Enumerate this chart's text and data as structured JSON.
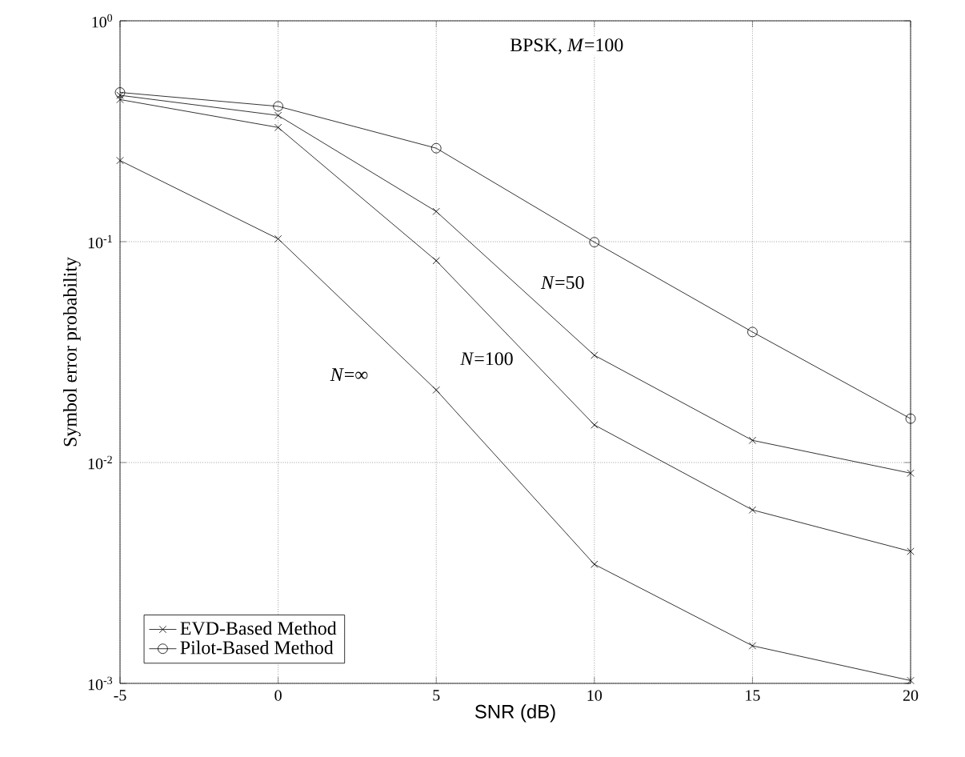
{
  "chart_data": {
    "type": "line",
    "title": "BPSK, *M*=100",
    "xlabel": "SNR (dB)",
    "ylabel": "Symbol error probability",
    "x": [
      -5,
      0,
      5,
      10,
      15,
      20
    ],
    "series": [
      {
        "name": "EVD-Based Method",
        "color": "#000000",
        "marker": "cross",
        "values": [
          0.233,
          0.103,
          0.0213,
          0.00346,
          0.00148,
          0.00103
        ]
      },
      {
        "color": "#000000",
        "marker": "cross",
        "values": [
          0.44,
          0.329,
          0.082,
          0.0148,
          0.0061,
          0.00396
        ]
      },
      {
        "color": "#000000",
        "marker": "cross",
        "values": [
          0.46,
          0.373,
          0.137,
          0.0306,
          0.0126,
          0.00895
        ]
      },
      {
        "name": "Pilot-Based Method",
        "color": "#000000",
        "marker": "circle",
        "values": [
          0.474,
          0.41,
          0.265,
          0.0995,
          0.039,
          0.0158
        ]
      }
    ],
    "annotations": [
      "*N*=∞",
      "*N*=100",
      "*N*=50"
    ],
    "xlim": [
      -5,
      20
    ],
    "xticks": [
      -5,
      0,
      5,
      10,
      15,
      20
    ],
    "ylim": [
      0.001,
      1
    ],
    "yticks": [
      {
        "value": 0.001,
        "label": "10$^{-3}$"
      },
      {
        "value": 0.01,
        "label": "10$^{-2}$"
      },
      {
        "value": 0.1,
        "label": "10$^{-1}$"
      },
      {
        "value": 1,
        "label": "10$^{0}$"
      }
    ],
    "log": "y",
    "grid": true,
    "legend": "bottom left",
    "line_style": "solid"
  }
}
